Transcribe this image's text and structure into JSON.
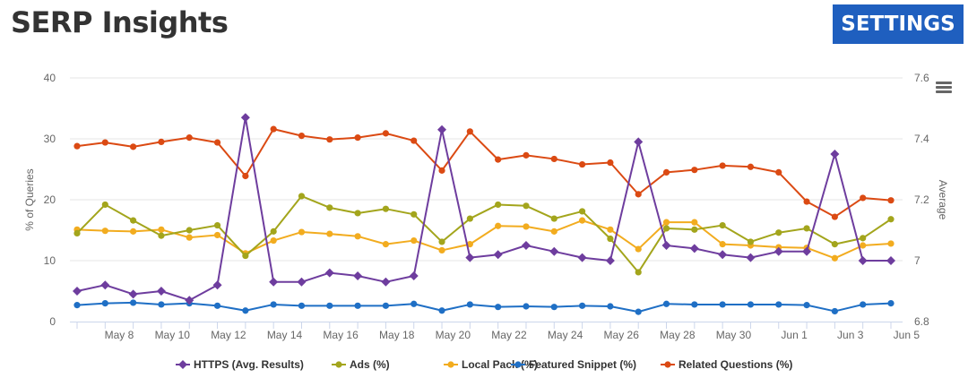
{
  "header": {
    "title": "SERP Insights",
    "settings_label": "SETTINGS"
  },
  "colors": {
    "accent": "#1f5fbf",
    "https": "#6e3d9e",
    "ads": "#a3a51c",
    "local_pack": "#f2ac1f",
    "featured_snippet": "#1f6fc5",
    "related_questions": "#db4a13"
  },
  "icons": {
    "menu": "hamburger-menu-icon"
  },
  "chart_data": {
    "type": "line",
    "x": [
      "May 7",
      "May 8",
      "May 9",
      "May 10",
      "May 11",
      "May 12",
      "May 13",
      "May 14",
      "May 15",
      "May 16",
      "May 17",
      "May 18",
      "May 19",
      "May 20",
      "May 21",
      "May 22",
      "May 23",
      "May 24",
      "May 25",
      "May 26",
      "May 27",
      "May 28",
      "May 29",
      "May 30",
      "May 31",
      "Jun 1",
      "Jun 2",
      "Jun 3",
      "Jun 4",
      "Jun 5"
    ],
    "x_tick_labels": [
      "May 8",
      "May 10",
      "May 12",
      "May 14",
      "May 16",
      "May 18",
      "May 20",
      "May 22",
      "May 24",
      "May 26",
      "May 28",
      "May 30",
      "Jun 1",
      "Jun 3",
      "Jun 5"
    ],
    "ylabel_left": "% of Queries",
    "ylabel_right": "Average",
    "ylim_left": [
      0,
      40
    ],
    "ylim_right": [
      6.8,
      7.6
    ],
    "y_ticks_left": [
      0,
      10,
      20,
      30,
      40
    ],
    "y_ticks_right": [
      "6.8",
      "7",
      "7.2",
      "7.4",
      "7.6"
    ],
    "grid": true,
    "legend_position": "bottom",
    "series": [
      {
        "name": "HTTPS (Avg. Results)",
        "color_key": "https",
        "marker": "diamond",
        "axis": "right",
        "values": [
          6.9,
          6.92,
          6.89,
          6.9,
          6.87,
          6.92,
          7.47,
          6.93,
          6.93,
          6.96,
          6.95,
          6.93,
          6.95,
          7.43,
          7.01,
          7.02,
          7.05,
          7.03,
          7.01,
          7.0,
          7.39,
          7.05,
          7.04,
          7.02,
          7.01,
          7.03,
          7.03,
          7.35,
          7.0,
          7.0
        ]
      },
      {
        "name": "Ads (%)",
        "color_key": "ads",
        "marker": "circle",
        "axis": "left",
        "values": [
          14.5,
          19.2,
          16.6,
          14.1,
          15.0,
          15.8,
          10.8,
          14.8,
          20.6,
          18.7,
          17.8,
          18.5,
          17.6,
          13.1,
          16.9,
          19.2,
          19.0,
          16.9,
          18.1,
          13.6,
          8.1,
          15.3,
          15.1,
          15.8,
          13.1,
          14.6,
          15.3,
          12.7,
          13.7,
          16.8
        ]
      },
      {
        "name": "Local Pack (%)",
        "color_key": "local_pack",
        "marker": "circle",
        "axis": "left",
        "values": [
          15.1,
          14.9,
          14.8,
          15.1,
          13.8,
          14.2,
          11.2,
          13.3,
          14.7,
          14.4,
          14.0,
          12.7,
          13.3,
          11.7,
          12.7,
          15.7,
          15.6,
          14.8,
          16.6,
          15.1,
          11.9,
          16.3,
          16.3,
          12.7,
          12.5,
          12.2,
          12.1,
          10.4,
          12.5,
          12.8
        ]
      },
      {
        "name": "Featured Snippet (%)",
        "color_key": "featured_snippet",
        "marker": "circle",
        "axis": "left",
        "values": [
          2.7,
          3.0,
          3.1,
          2.8,
          3.0,
          2.6,
          1.8,
          2.8,
          2.6,
          2.6,
          2.6,
          2.6,
          2.9,
          1.8,
          2.8,
          2.4,
          2.5,
          2.4,
          2.6,
          2.5,
          1.6,
          2.9,
          2.8,
          2.8,
          2.8,
          2.8,
          2.7,
          1.7,
          2.8,
          3.0
        ]
      },
      {
        "name": "Related Questions (%)",
        "color_key": "related_questions",
        "marker": "circle",
        "axis": "left",
        "values": [
          28.8,
          29.4,
          28.7,
          29.5,
          30.2,
          29.4,
          23.9,
          31.6,
          30.5,
          29.9,
          30.2,
          30.9,
          29.7,
          24.8,
          31.2,
          26.6,
          27.3,
          26.7,
          25.8,
          26.1,
          20.9,
          24.5,
          24.9,
          25.6,
          25.4,
          24.5,
          19.7,
          17.2,
          20.3,
          19.9
        ]
      }
    ]
  }
}
